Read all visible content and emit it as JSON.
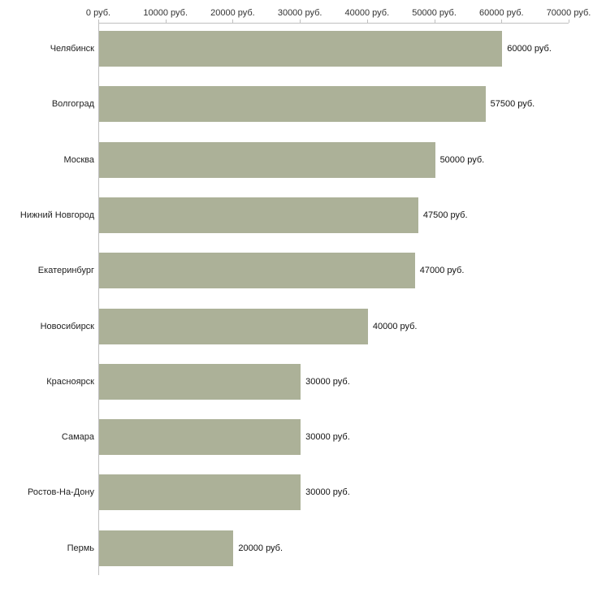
{
  "chart_data": {
    "type": "bar",
    "orientation": "horizontal",
    "title": "",
    "xlabel": "",
    "ylabel": "",
    "xlim": [
      0,
      70000
    ],
    "grid": false,
    "legend": false,
    "bar_color": "#acb198",
    "axis_color": "#c0c0c0",
    "x_axis_ticks": [
      "0 руб.",
      "10000 руб.",
      "20000 руб.",
      "30000 руб.",
      "40000 руб.",
      "50000 руб.",
      "60000 руб.",
      "70000 руб."
    ],
    "categories": [
      "Челябинск",
      "Волгоград",
      "Москва",
      "Нижний Новгород",
      "Екатеринбург",
      "Новосибирск",
      "Красноярск",
      "Самара",
      "Ростов-На-Дону",
      "Пермь"
    ],
    "values": [
      60000,
      57500,
      50000,
      47500,
      47000,
      40000,
      30000,
      30000,
      30000,
      20000
    ],
    "value_labels": [
      "60000 руб.",
      "57500 руб.",
      "50000 руб.",
      "47500 руб.",
      "47000 руб.",
      "40000 руб.",
      "30000 руб.",
      "30000 руб.",
      "30000 руб.",
      "20000 руб."
    ]
  }
}
